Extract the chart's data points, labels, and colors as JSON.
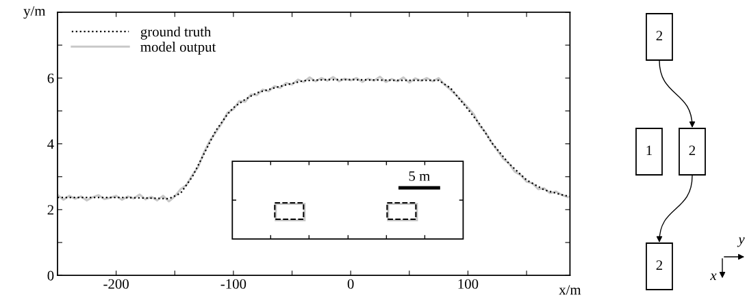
{
  "chart_data": {
    "type": "line",
    "xlabel": "x/m",
    "ylabel": "y/m",
    "xlim": [
      -250,
      187
    ],
    "ylim": [
      0,
      8
    ],
    "xticks": [
      -200,
      {
        "value": -150,
        "label": null
      },
      -100,
      {
        "value": -50,
        "label": null
      },
      0,
      {
        "value": 50,
        "label": null
      },
      100,
      {
        "value": 150,
        "label": null
      }
    ],
    "yticks": [
      0,
      {
        "value": 1,
        "label": null
      },
      2,
      {
        "value": 3,
        "label": null
      },
      4,
      {
        "value": 5,
        "label": null
      },
      6,
      {
        "value": 7,
        "label": null
      },
      {
        "value": 8,
        "label": null
      }
    ],
    "grid": false,
    "legend": "top left",
    "series": [
      {
        "name": "model output",
        "color": "#c8c8c8",
        "line_style": "solid",
        "x": [
          -250,
          -245,
          -240,
          -235,
          -230,
          -225,
          -220,
          -215,
          -210,
          -205,
          -200,
          -195,
          -190,
          -185,
          -180,
          -175,
          -170,
          -165,
          -160,
          -155,
          -150,
          -145,
          -140,
          -135,
          -130,
          -125,
          -120,
          -115,
          -110,
          -105,
          -100,
          -95,
          -90,
          -85,
          -80,
          -75,
          -70,
          -65,
          -60,
          -55,
          -50,
          -45,
          -40,
          -35,
          -30,
          -25,
          -20,
          -15,
          -10,
          -5,
          0,
          5,
          10,
          15,
          20,
          25,
          30,
          35,
          40,
          45,
          50,
          55,
          60,
          65,
          70,
          75,
          80,
          85,
          90,
          95,
          100,
          105,
          110,
          115,
          120,
          125,
          130,
          135,
          140,
          145,
          150,
          155,
          160,
          165,
          170,
          175,
          180,
          185
        ],
        "values": [
          2.45,
          2.3,
          2.42,
          2.33,
          2.4,
          2.28,
          2.38,
          2.44,
          2.32,
          2.36,
          2.42,
          2.3,
          2.4,
          2.34,
          2.46,
          2.31,
          2.39,
          2.28,
          2.42,
          2.25,
          2.4,
          2.62,
          2.75,
          3.05,
          3.3,
          3.75,
          4.1,
          4.35,
          4.62,
          4.95,
          5.05,
          5.3,
          5.28,
          5.5,
          5.48,
          5.65,
          5.6,
          5.75,
          5.7,
          5.85,
          5.8,
          5.95,
          5.88,
          6.02,
          5.9,
          6.0,
          5.92,
          6.03,
          5.9,
          5.98,
          5.93,
          6.0,
          5.88,
          5.98,
          5.92,
          6.04,
          5.88,
          5.97,
          5.9,
          6.02,
          5.86,
          5.99,
          5.92,
          6.0,
          5.9,
          6.0,
          5.8,
          5.65,
          5.48,
          5.3,
          5.1,
          4.9,
          4.55,
          4.35,
          4.05,
          3.8,
          3.55,
          3.4,
          3.15,
          3.05,
          2.85,
          2.8,
          2.62,
          2.65,
          2.5,
          2.55,
          2.45,
          2.38
        ]
      },
      {
        "name": "ground truth",
        "color": "#000000",
        "line_style": "dotted",
        "x": [
          -250,
          -200,
          -170,
          -155,
          -145,
          -135,
          -130,
          -120,
          -115,
          -105,
          -100,
          -90,
          -80,
          -60,
          -40,
          -20,
          0,
          40,
          75,
          85,
          100,
          110,
          121,
          135,
          150,
          165,
          180,
          187
        ],
        "values": [
          2.37,
          2.37,
          2.35,
          2.33,
          2.5,
          3.0,
          3.35,
          4.05,
          4.4,
          4.9,
          5.1,
          5.35,
          5.55,
          5.75,
          5.92,
          5.95,
          5.95,
          5.93,
          5.93,
          5.7,
          5.05,
          4.6,
          4.0,
          3.4,
          2.9,
          2.6,
          2.45,
          2.4
        ]
      }
    ],
    "annotations": [
      "5 m",
      "2",
      "1",
      "2",
      "2",
      "x",
      "y"
    ]
  }
}
